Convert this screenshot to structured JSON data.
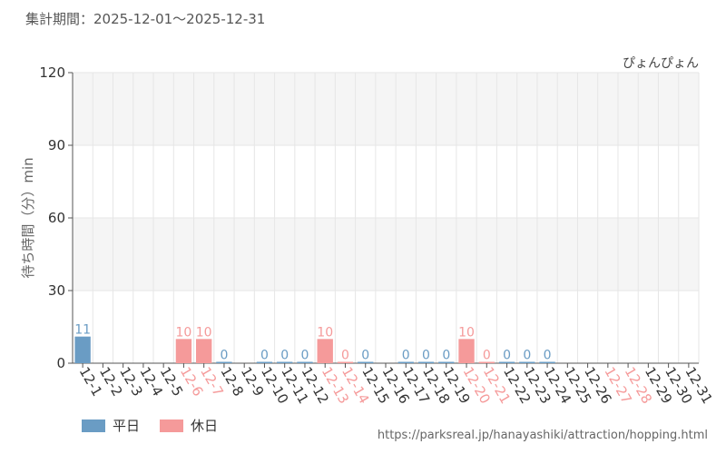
{
  "header": {
    "period": "集計期間：2025-12-01〜2025-12-31"
  },
  "footer": {
    "url": "https://parksreal.jp/hanayashiki/attraction/hopping.html"
  },
  "colors": {
    "weekday": "#6a9cc4",
    "holiday": "#f59a9a",
    "axis_text": "#333333",
    "grid": "#e6e6e6",
    "band": "#f5f5f5"
  },
  "chart_data": {
    "type": "bar",
    "title": "ぴょんぴょん",
    "xlabel": "",
    "ylabel": "待ち時間（分）min",
    "ylim": [
      0,
      120
    ],
    "yticks": [
      0,
      30,
      60,
      90,
      120
    ],
    "grid": true,
    "legend_position": "bottom-left",
    "categories": [
      "12-1",
      "12-2",
      "12-3",
      "12-4",
      "12-5",
      "12-6",
      "12-7",
      "12-8",
      "12-9",
      "12-10",
      "12-11",
      "12-12",
      "12-13",
      "12-14",
      "12-15",
      "12-16",
      "12-17",
      "12-18",
      "12-19",
      "12-20",
      "12-21",
      "12-22",
      "12-23",
      "12-24",
      "12-25",
      "12-26",
      "12-27",
      "12-28",
      "12-29",
      "12-30",
      "12-31"
    ],
    "values": [
      11,
      null,
      null,
      null,
      null,
      10,
      10,
      0,
      null,
      0,
      0,
      0,
      10,
      0,
      0,
      null,
      0,
      0,
      0,
      10,
      0,
      0,
      0,
      0,
      null,
      null,
      null,
      null,
      null,
      null,
      null
    ],
    "day_type": [
      "weekday",
      "weekday",
      "weekday",
      "weekday",
      "weekday",
      "holiday",
      "holiday",
      "weekday",
      "weekday",
      "weekday",
      "weekday",
      "weekday",
      "holiday",
      "holiday",
      "weekday",
      "weekday",
      "weekday",
      "weekday",
      "weekday",
      "holiday",
      "holiday",
      "weekday",
      "weekday",
      "weekday",
      "weekday",
      "weekday",
      "holiday",
      "holiday",
      "weekday",
      "weekday",
      "weekday"
    ],
    "series": [
      {
        "name": "平日",
        "color": "#6a9cc4"
      },
      {
        "name": "休日",
        "color": "#f59a9a"
      }
    ]
  }
}
